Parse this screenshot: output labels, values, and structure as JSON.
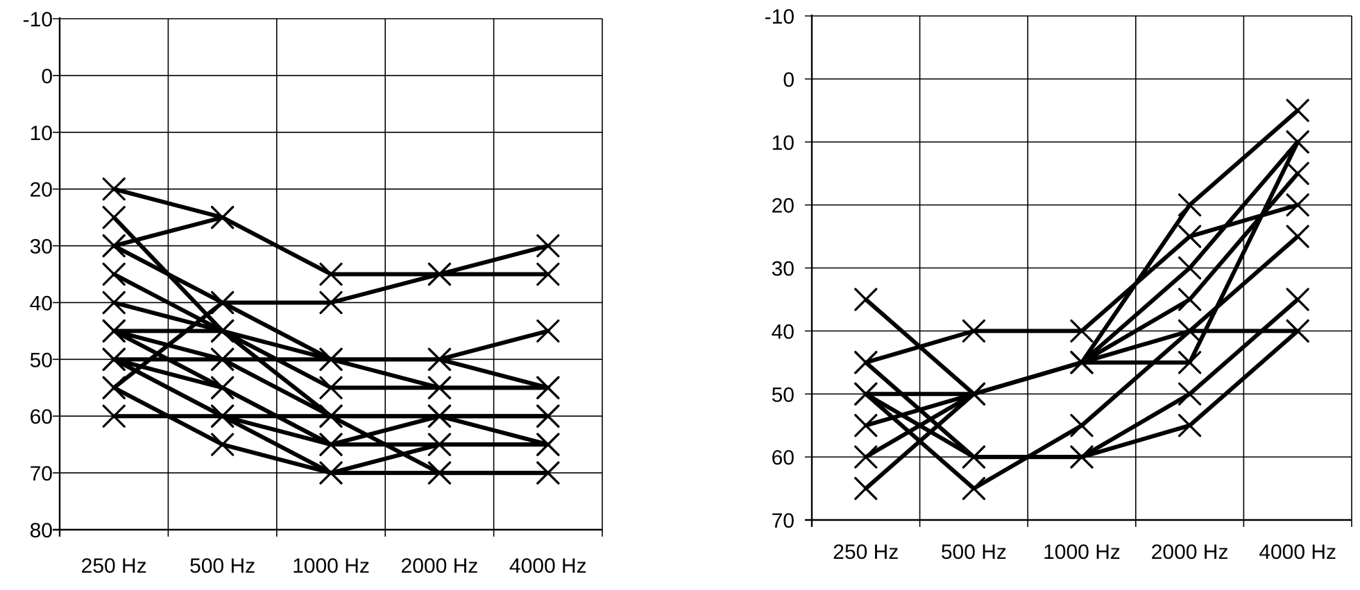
{
  "chart_data": [
    {
      "type": "line",
      "categories": [
        "250 Hz",
        "500 Hz",
        "1000 Hz",
        "2000 Hz",
        "4000 Hz"
      ],
      "y_ticks": [
        -10,
        0,
        10,
        20,
        30,
        40,
        50,
        60,
        70,
        80
      ],
      "ylim": [
        -10,
        80
      ],
      "y_inverted": true,
      "grid": true,
      "legend": "none",
      "marker": "x",
      "series": [
        {
          "values": [
            20,
            25,
            35,
            35,
            35
          ]
        },
        {
          "values": [
            30,
            25,
            null,
            null,
            null
          ]
        },
        {
          "values": [
            30,
            40,
            40,
            35,
            30
          ]
        },
        {
          "values": [
            25,
            45,
            50,
            50,
            45
          ]
        },
        {
          "values": [
            35,
            45,
            60,
            60,
            60
          ]
        },
        {
          "values": [
            45,
            45,
            null,
            null,
            null
          ]
        },
        {
          "values": [
            55,
            40,
            50,
            55,
            55
          ]
        },
        {
          "values": [
            40,
            45,
            55,
            55,
            55
          ]
        },
        {
          "values": [
            45,
            55,
            65,
            60,
            60
          ]
        },
        {
          "values": [
            50,
            50,
            50,
            50,
            55
          ]
        },
        {
          "values": [
            50,
            60,
            65,
            65,
            65
          ]
        },
        {
          "values": [
            45,
            50,
            60,
            70,
            70
          ]
        },
        {
          "values": [
            55,
            65,
            70,
            70,
            70
          ]
        },
        {
          "values": [
            60,
            60,
            60,
            60,
            60
          ]
        },
        {
          "values": [
            50,
            55,
            65,
            60,
            65
          ]
        },
        {
          "values": [
            50,
            60,
            70,
            65,
            65
          ]
        }
      ]
    },
    {
      "type": "line",
      "categories": [
        "250 Hz",
        "500 Hz",
        "1000 Hz",
        "2000 Hz",
        "4000 Hz"
      ],
      "y_ticks": [
        -10,
        0,
        10,
        20,
        30,
        40,
        50,
        60,
        70
      ],
      "ylim": [
        -10,
        70
      ],
      "y_inverted": true,
      "grid": true,
      "legend": "none",
      "marker": "x",
      "series": [
        {
          "values": [
            35,
            50,
            45,
            20,
            5
          ]
        },
        {
          "values": [
            45,
            40,
            40,
            25,
            20
          ]
        },
        {
          "values": [
            50,
            50,
            45,
            30,
            10
          ]
        },
        {
          "values": [
            55,
            50,
            45,
            35,
            15
          ]
        },
        {
          "values": [
            60,
            50,
            45,
            45,
            10
          ]
        },
        {
          "values": [
            65,
            50,
            45,
            40,
            25
          ]
        },
        {
          "values": [
            45,
            60,
            60,
            50,
            35
          ]
        },
        {
          "values": [
            50,
            65,
            55,
            40,
            40
          ]
        },
        {
          "values": [
            50,
            60,
            60,
            55,
            40
          ]
        }
      ]
    }
  ]
}
